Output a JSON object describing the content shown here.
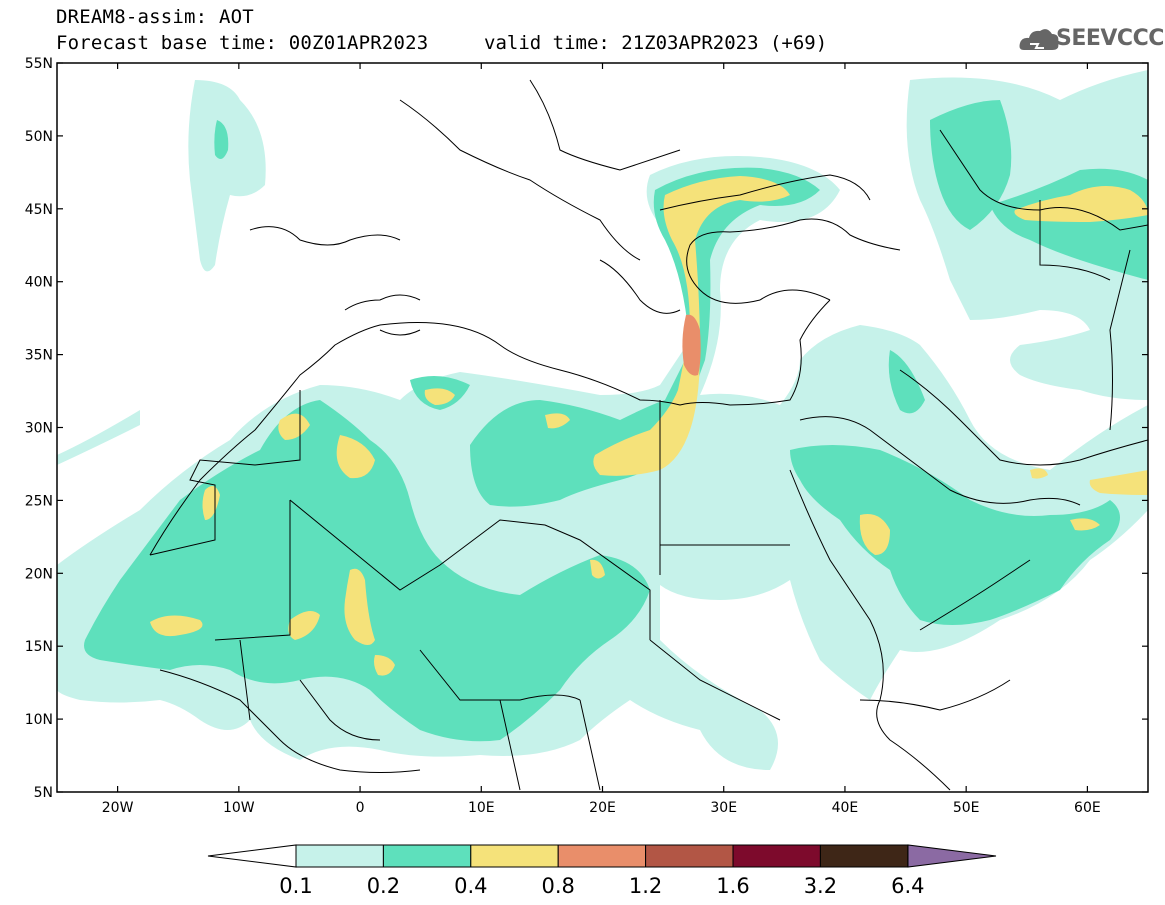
{
  "header": {
    "model_title": "DREAM8-assim: AOT",
    "base_time": "Forecast base time: 00Z01APR2023",
    "valid_time": "valid time: 21Z03APR2023 (+69)",
    "logo_text": "SEEVCCC",
    "logo_icon": "cloud-icon"
  },
  "map": {
    "lon_range": [
      -25,
      65
    ],
    "lat_range": [
      5,
      55
    ],
    "lon_ticks": [
      "20W",
      "10W",
      "0",
      "10E",
      "20E",
      "30E",
      "40E",
      "50E",
      "60E"
    ],
    "lat_ticks": [
      "55N",
      "50N",
      "45N",
      "40N",
      "35N",
      "30N",
      "25N",
      "20N",
      "15N",
      "10N",
      "5N"
    ],
    "colors": {
      "level_01": "#c6f2ea",
      "level_02": "#5ee0bc",
      "level_04": "#f5e27a",
      "level_08": "#e98e6a",
      "level_12": "#b25645",
      "level_16": "#7d0a2c",
      "level_32": "#3e2617",
      "level_64": "#8b6aa3",
      "border": "#000000"
    }
  },
  "colorbar": {
    "labels": [
      "0.1",
      "0.2",
      "0.4",
      "0.8",
      "1.2",
      "1.6",
      "3.2",
      "6.4"
    ],
    "colors": [
      "#c6f2ea",
      "#5ee0bc",
      "#f5e27a",
      "#e98e6a",
      "#b25645",
      "#7d0a2c",
      "#3e2617"
    ],
    "low_extend_color": "#ffffff",
    "high_extend_color": "#8b6aa3"
  }
}
